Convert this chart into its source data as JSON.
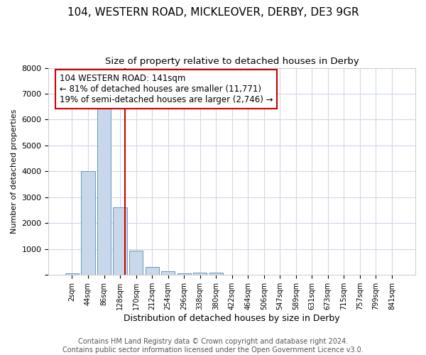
{
  "title": "104, WESTERN ROAD, MICKLEOVER, DERBY, DE3 9GR",
  "subtitle": "Size of property relative to detached houses in Derby",
  "xlabel": "Distribution of detached houses by size in Derby",
  "ylabel": "Number of detached properties",
  "bar_labels": [
    "2sqm",
    "44sqm",
    "86sqm",
    "128sqm",
    "170sqm",
    "212sqm",
    "254sqm",
    "296sqm",
    "338sqm",
    "380sqm",
    "422sqm",
    "464sqm",
    "506sqm",
    "547sqm",
    "589sqm",
    "631sqm",
    "673sqm",
    "715sqm",
    "757sqm",
    "799sqm",
    "841sqm"
  ],
  "bar_heights": [
    55,
    4000,
    6600,
    2600,
    950,
    320,
    150,
    70,
    100,
    100,
    0,
    0,
    0,
    0,
    0,
    0,
    0,
    0,
    0,
    0,
    0
  ],
  "bar_color": "#c8d8ea",
  "bar_edgecolor": "#6699bb",
  "vline_color": "#cc0000",
  "annotation_line1": "104 WESTERN ROAD: 141sqm",
  "annotation_line2": "← 81% of detached houses are smaller (11,771)",
  "annotation_line3": "19% of semi-detached houses are larger (2,746) →",
  "annotation_box_color": "#ffffff",
  "annotation_box_edgecolor": "#cc0000",
  "ylim": [
    0,
    8000
  ],
  "footer_text": "Contains HM Land Registry data © Crown copyright and database right 2024.\nContains public sector information licensed under the Open Government Licence v3.0.",
  "bg_color": "#ffffff",
  "plot_bg_color": "#ffffff",
  "grid_color": "#d0d8e8",
  "title_fontsize": 11,
  "subtitle_fontsize": 9.5,
  "annotation_fontsize": 8.5,
  "footer_fontsize": 7,
  "ylabel_fontsize": 8,
  "xlabel_fontsize": 9
}
